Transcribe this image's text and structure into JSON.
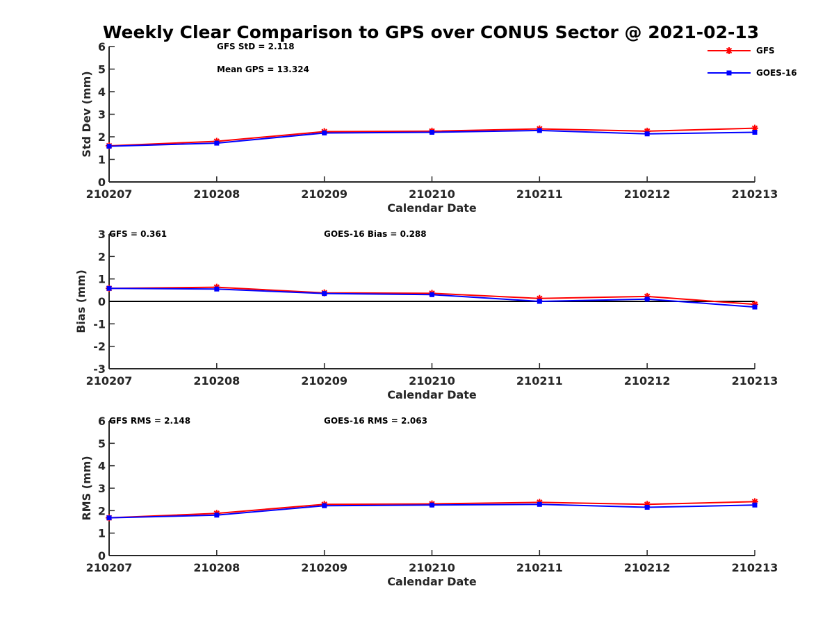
{
  "chart_data": [
    {
      "type": "line",
      "title": "Weekly Clear Comparison to GPS over CONUS Sector @ 2021-02-13",
      "xlabel": "Calendar Date",
      "ylabel": "Std Dev (mm)",
      "categories": [
        "210207",
        "210208",
        "210209",
        "210210",
        "210211",
        "210212",
        "210213"
      ],
      "ylim": [
        0,
        6
      ],
      "yticks": [
        "0",
        "1",
        "2",
        "3",
        "4",
        "5",
        "6"
      ],
      "series": [
        {
          "name": "GFS",
          "color": "#ff0000",
          "marker": "asterisk",
          "values": [
            1.6,
            1.8,
            2.23,
            2.25,
            2.35,
            2.25,
            2.38
          ]
        },
        {
          "name": "GOES-16",
          "color": "#0000ff",
          "marker": "square",
          "values": [
            1.58,
            1.72,
            2.17,
            2.2,
            2.28,
            2.13,
            2.2
          ]
        }
      ],
      "annotations": [
        "GFS StD = 2.118",
        "Mean GPS = 13.324"
      ],
      "legend": "top-right"
    },
    {
      "type": "line",
      "xlabel": "Calendar Date",
      "ylabel": "Bias (mm)",
      "categories": [
        "210207",
        "210208",
        "210209",
        "210210",
        "210211",
        "210212",
        "210213"
      ],
      "ylim": [
        -3,
        3
      ],
      "yticks": [
        "-3",
        "-2",
        "-1",
        "0",
        "1",
        "2",
        "3"
      ],
      "zero_line": true,
      "series": [
        {
          "name": "GFS",
          "color": "#ff0000",
          "marker": "asterisk",
          "values": [
            0.58,
            0.63,
            0.38,
            0.36,
            0.13,
            0.22,
            -0.13
          ]
        },
        {
          "name": "GOES-16",
          "color": "#0000ff",
          "marker": "square",
          "values": [
            0.58,
            0.55,
            0.35,
            0.3,
            0.0,
            0.1,
            -0.25
          ]
        }
      ],
      "annotations": [
        "GFS = 0.361",
        "GOES-16 Bias  = 0.288"
      ]
    },
    {
      "type": "line",
      "xlabel": "Calendar Date",
      "ylabel": "RMS (mm)",
      "categories": [
        "210207",
        "210208",
        "210209",
        "210210",
        "210211",
        "210212",
        "210213"
      ],
      "ylim": [
        0,
        6
      ],
      "yticks": [
        "0",
        "1",
        "2",
        "3",
        "4",
        "5",
        "6"
      ],
      "series": [
        {
          "name": "GFS",
          "color": "#ff0000",
          "marker": "asterisk",
          "values": [
            1.68,
            1.88,
            2.28,
            2.3,
            2.37,
            2.28,
            2.4
          ]
        },
        {
          "name": "GOES-16",
          "color": "#0000ff",
          "marker": "square",
          "values": [
            1.68,
            1.8,
            2.22,
            2.25,
            2.28,
            2.15,
            2.25
          ]
        }
      ],
      "annotations": [
        "GFS RMS = 2.148",
        "GOES-16 RMS = 2.063"
      ]
    }
  ]
}
